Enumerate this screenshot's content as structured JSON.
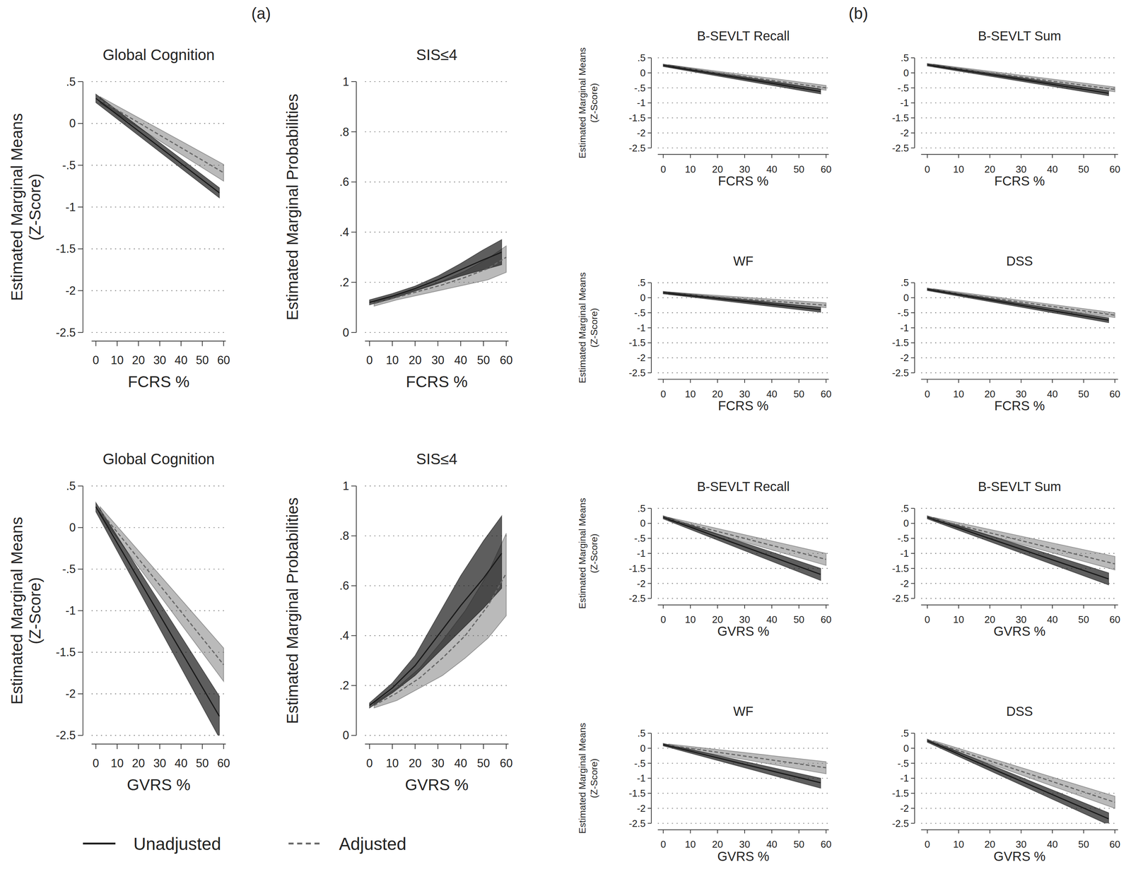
{
  "panel_labels": [
    "(a)",
    "(b)"
  ],
  "chart_data": [
    {
      "type": "line",
      "title": "Global Cognition",
      "x_label": "FCRS %",
      "y_label": "Estimated Marginal Means\n(Z-Score)",
      "xlim": [
        -2,
        61
      ],
      "ylim": [
        -2.5,
        0.5
      ],
      "xticks": [
        0,
        10,
        20,
        30,
        40,
        50,
        60
      ],
      "yticks": [
        {
          "value": 0.5,
          "label": ".5"
        },
        0,
        {
          "value": -0.5,
          "label": "-.5"
        },
        -1,
        -1.5,
        -2,
        -2.5
      ],
      "grid": true,
      "series": [
        {
          "name": "Unadjusted",
          "color": "#1a1a1a",
          "line_style": "solid",
          "x": [
            0,
            58
          ],
          "values": [
            0.3,
            -0.83
          ],
          "lower": [
            0.25,
            -0.89
          ],
          "upper": [
            0.35,
            -0.77
          ]
        },
        {
          "name": "Adjusted",
          "color": "#666666",
          "line_style": "dashed",
          "x": [
            2,
            60
          ],
          "values": [
            0.28,
            -0.59
          ],
          "lower": [
            0.24,
            -0.69
          ],
          "upper": [
            0.32,
            -0.49
          ]
        }
      ]
    },
    {
      "type": "line",
      "title": "SIS≤4",
      "x_label": "FCRS %",
      "y_label": "Estimated Marginal Probabilities",
      "xlim": [
        -2,
        61
      ],
      "ylim": [
        0,
        1
      ],
      "xticks": [
        0,
        10,
        20,
        30,
        40,
        50,
        60
      ],
      "yticks": [
        0,
        {
          "value": 0.2,
          "label": ".2"
        },
        {
          "value": 0.4,
          "label": ".4"
        },
        {
          "value": 0.6,
          "label": ".6"
        },
        {
          "value": 0.8,
          "label": ".8"
        },
        1
      ],
      "grid": true,
      "series": [
        {
          "color": "#1a1a1a",
          "line_style": "solid",
          "x": [
            0,
            10,
            20,
            30,
            40,
            50,
            58
          ],
          "values": [
            0.12,
            0.145,
            0.175,
            0.21,
            0.25,
            0.29,
            0.32
          ],
          "lower": [
            0.11,
            0.135,
            0.165,
            0.195,
            0.225,
            0.25,
            0.27
          ],
          "upper": [
            0.13,
            0.155,
            0.185,
            0.225,
            0.275,
            0.33,
            0.37
          ]
        },
        {
          "color": "#666666",
          "line_style": "dashed",
          "x": [
            2,
            12,
            22,
            32,
            42,
            52,
            60
          ],
          "values": [
            0.115,
            0.14,
            0.165,
            0.19,
            0.22,
            0.255,
            0.3
          ],
          "lower": [
            0.105,
            0.13,
            0.15,
            0.17,
            0.19,
            0.21,
            0.24
          ],
          "upper": [
            0.125,
            0.15,
            0.175,
            0.205,
            0.245,
            0.295,
            0.345
          ]
        }
      ]
    },
    {
      "type": "line",
      "title": "Global Cognition",
      "x_label": "GVRS %",
      "y_label": "Estimated Marginal Means\n(Z-Score)",
      "xlim": [
        -2,
        61
      ],
      "ylim": [
        -2.5,
        0.5
      ],
      "xticks": [
        0,
        10,
        20,
        30,
        40,
        50,
        60
      ],
      "yticks": [
        {
          "value": 0.5,
          "label": ".5"
        },
        0,
        {
          "value": -0.5,
          "label": "-.5"
        },
        -1,
        -1.5,
        -2,
        -2.5
      ],
      "grid": true,
      "series": [
        {
          "color": "#1a1a1a",
          "line_style": "solid",
          "x": [
            0,
            58
          ],
          "values": [
            0.25,
            -2.27
          ],
          "lower": [
            0.19,
            -2.53
          ],
          "upper": [
            0.3,
            -2.03
          ]
        },
        {
          "color": "#666666",
          "line_style": "dashed",
          "x": [
            2,
            60
          ],
          "values": [
            0.2,
            -1.65
          ],
          "lower": [
            0.15,
            -1.85
          ],
          "upper": [
            0.25,
            -1.45
          ]
        }
      ]
    },
    {
      "type": "line",
      "title": "SIS≤4",
      "x_label": "GVRS %",
      "y_label": "Estimated Marginal Probabilities",
      "xlim": [
        -2,
        61
      ],
      "ylim": [
        0,
        1
      ],
      "xticks": [
        0,
        10,
        20,
        30,
        40,
        50,
        60
      ],
      "yticks": [
        0,
        {
          "value": 0.2,
          "label": ".2"
        },
        {
          "value": 0.4,
          "label": ".4"
        },
        {
          "value": 0.6,
          "label": ".6"
        },
        {
          "value": 0.8,
          "label": ".8"
        },
        1
      ],
      "grid": true,
      "series": [
        {
          "color": "#1a1a1a",
          "line_style": "solid",
          "x": [
            0,
            10,
            20,
            30,
            40,
            50,
            58
          ],
          "values": [
            0.12,
            0.19,
            0.28,
            0.4,
            0.52,
            0.63,
            0.73
          ],
          "lower": [
            0.11,
            0.17,
            0.24,
            0.33,
            0.42,
            0.51,
            0.59
          ],
          "upper": [
            0.13,
            0.21,
            0.32,
            0.48,
            0.64,
            0.78,
            0.88
          ]
        },
        {
          "color": "#666666",
          "line_style": "dashed",
          "x": [
            2,
            12,
            22,
            32,
            42,
            52,
            60
          ],
          "values": [
            0.12,
            0.17,
            0.23,
            0.31,
            0.4,
            0.52,
            0.65
          ],
          "lower": [
            0.11,
            0.14,
            0.19,
            0.24,
            0.31,
            0.39,
            0.48
          ],
          "upper": [
            0.13,
            0.19,
            0.27,
            0.38,
            0.5,
            0.65,
            0.81
          ]
        }
      ]
    },
    {
      "type": "line",
      "title": "B-SEVLT Recall",
      "x_label": "FCRS %",
      "y_label": "Estimated Marginal Means\n(Z-Score)",
      "xlim": [
        -2,
        61
      ],
      "ylim": [
        -2.5,
        0.5
      ],
      "xticks": [
        0,
        10,
        20,
        30,
        40,
        50,
        60
      ],
      "yticks": [
        {
          "value": 0.5,
          "label": ".5"
        },
        0,
        {
          "value": -0.5,
          "label": "-.5"
        },
        -1,
        -1.5,
        -2,
        -2.5
      ],
      "grid": true,
      "series": [
        {
          "color": "#1a1a1a",
          "line_style": "solid",
          "x": [
            0,
            58
          ],
          "values": [
            0.25,
            -0.62
          ],
          "lower": [
            0.21,
            -0.7
          ],
          "upper": [
            0.29,
            -0.54
          ]
        },
        {
          "color": "#666666",
          "line_style": "dashed",
          "x": [
            2,
            60
          ],
          "values": [
            0.23,
            -0.5
          ],
          "lower": [
            0.19,
            -0.58
          ],
          "upper": [
            0.27,
            -0.42
          ]
        }
      ]
    },
    {
      "type": "line",
      "title": "B-SEVLT Sum",
      "x_label": "FCRS %",
      "xlim": [
        -2,
        61
      ],
      "ylim": [
        -2.5,
        0.5
      ],
      "xticks": [
        0,
        10,
        20,
        30,
        40,
        50,
        60
      ],
      "yticks": [
        {
          "value": 0.5,
          "label": ".5"
        },
        0,
        {
          "value": -0.5,
          "label": "-.5"
        },
        -1,
        -1.5,
        -2,
        -2.5
      ],
      "grid": true,
      "series": [
        {
          "color": "#1a1a1a",
          "line_style": "solid",
          "x": [
            0,
            58
          ],
          "values": [
            0.27,
            -0.68
          ],
          "lower": [
            0.23,
            -0.76
          ],
          "upper": [
            0.31,
            -0.6
          ]
        },
        {
          "color": "#666666",
          "line_style": "dashed",
          "x": [
            2,
            60
          ],
          "values": [
            0.25,
            -0.55
          ],
          "lower": [
            0.21,
            -0.63
          ],
          "upper": [
            0.29,
            -0.47
          ]
        }
      ]
    },
    {
      "type": "line",
      "title": "WF",
      "x_label": "FCRS %",
      "y_label": "Estimated Marginal Means\n(Z-Score)",
      "xlim": [
        -2,
        61
      ],
      "ylim": [
        -2.5,
        0.5
      ],
      "xticks": [
        0,
        10,
        20,
        30,
        40,
        50,
        60
      ],
      "yticks": [
        {
          "value": 0.5,
          "label": ".5"
        },
        0,
        {
          "value": -0.5,
          "label": "-.5"
        },
        -1,
        -1.5,
        -2,
        -2.5
      ],
      "grid": true,
      "series": [
        {
          "color": "#1a1a1a",
          "line_style": "solid",
          "x": [
            0,
            58
          ],
          "values": [
            0.17,
            -0.4
          ],
          "lower": [
            0.13,
            -0.48
          ],
          "upper": [
            0.21,
            -0.32
          ]
        },
        {
          "color": "#666666",
          "line_style": "dashed",
          "x": [
            2,
            60
          ],
          "values": [
            0.15,
            -0.25
          ],
          "lower": [
            0.11,
            -0.33
          ],
          "upper": [
            0.19,
            -0.17
          ]
        }
      ]
    },
    {
      "type": "line",
      "title": "DSS",
      "x_label": "FCRS %",
      "xlim": [
        -2,
        61
      ],
      "ylim": [
        -2.5,
        0.5
      ],
      "xticks": [
        0,
        10,
        20,
        30,
        40,
        50,
        60
      ],
      "yticks": [
        {
          "value": 0.5,
          "label": ".5"
        },
        0,
        {
          "value": -0.5,
          "label": "-.5"
        },
        -1,
        -1.5,
        -2,
        -2.5
      ],
      "grid": true,
      "series": [
        {
          "color": "#1a1a1a",
          "line_style": "solid",
          "x": [
            0,
            58
          ],
          "values": [
            0.28,
            -0.75
          ],
          "lower": [
            0.24,
            -0.83
          ],
          "upper": [
            0.32,
            -0.67
          ]
        },
        {
          "color": "#666666",
          "line_style": "dashed",
          "x": [
            2,
            60
          ],
          "values": [
            0.26,
            -0.58
          ],
          "lower": [
            0.22,
            -0.66
          ],
          "upper": [
            0.3,
            -0.5
          ]
        }
      ]
    },
    {
      "type": "line",
      "title": "B-SEVLT Recall",
      "x_label": "GVRS %",
      "y_label": "Estimated Marginal Means\n(Z-Score)",
      "xlim": [
        -2,
        61
      ],
      "ylim": [
        -2.5,
        0.5
      ],
      "xticks": [
        0,
        10,
        20,
        30,
        40,
        50,
        60
      ],
      "yticks": [
        {
          "value": 0.5,
          "label": ".5"
        },
        0,
        {
          "value": -0.5,
          "label": "-.5"
        },
        -1,
        -1.5,
        -2,
        -2.5
      ],
      "grid": true,
      "series": [
        {
          "color": "#1a1a1a",
          "line_style": "solid",
          "x": [
            0,
            58
          ],
          "values": [
            0.2,
            -1.7
          ],
          "lower": [
            0.15,
            -1.9
          ],
          "upper": [
            0.25,
            -1.5
          ]
        },
        {
          "color": "#666666",
          "line_style": "dashed",
          "x": [
            2,
            60
          ],
          "values": [
            0.15,
            -1.2
          ],
          "lower": [
            0.1,
            -1.4
          ],
          "upper": [
            0.2,
            -1.0
          ]
        }
      ]
    },
    {
      "type": "line",
      "title": "B-SEVLT Sum",
      "x_label": "GVRS %",
      "xlim": [
        -2,
        61
      ],
      "ylim": [
        -2.5,
        0.5
      ],
      "xticks": [
        0,
        10,
        20,
        30,
        40,
        50,
        60
      ],
      "yticks": [
        {
          "value": 0.5,
          "label": ".5"
        },
        0,
        {
          "value": -0.5,
          "label": "-.5"
        },
        -1,
        -1.5,
        -2,
        -2.5
      ],
      "grid": true,
      "series": [
        {
          "color": "#1a1a1a",
          "line_style": "solid",
          "x": [
            0,
            58
          ],
          "values": [
            0.2,
            -1.85
          ],
          "lower": [
            0.15,
            -2.05
          ],
          "upper": [
            0.25,
            -1.65
          ]
        },
        {
          "color": "#666666",
          "line_style": "dashed",
          "x": [
            2,
            60
          ],
          "values": [
            0.15,
            -1.35
          ],
          "lower": [
            0.1,
            -1.55
          ],
          "upper": [
            0.2,
            -1.1
          ]
        }
      ]
    },
    {
      "type": "line",
      "title": "WF",
      "x_label": "GVRS %",
      "y_label": "Estimated Marginal Means\n(Z-Score)",
      "xlim": [
        -2,
        61
      ],
      "ylim": [
        -2.5,
        0.5
      ],
      "xticks": [
        0,
        10,
        20,
        30,
        40,
        50,
        60
      ],
      "yticks": [
        {
          "value": 0.5,
          "label": ".5"
        },
        0,
        {
          "value": -0.5,
          "label": "-.5"
        },
        -1,
        -1.5,
        -2,
        -2.5
      ],
      "grid": true,
      "series": [
        {
          "color": "#1a1a1a",
          "line_style": "solid",
          "x": [
            0,
            58
          ],
          "values": [
            0.12,
            -1.15
          ],
          "lower": [
            0.08,
            -1.33
          ],
          "upper": [
            0.16,
            -1.0
          ]
        },
        {
          "color": "#666666",
          "line_style": "dashed",
          "x": [
            2,
            60
          ],
          "values": [
            0.1,
            -0.65
          ],
          "lower": [
            0.06,
            -0.85
          ],
          "upper": [
            0.14,
            -0.45
          ]
        }
      ]
    },
    {
      "type": "line",
      "title": "DSS",
      "x_label": "GVRS %",
      "xlim": [
        -2,
        61
      ],
      "ylim": [
        -2.5,
        0.5
      ],
      "xticks": [
        0,
        10,
        20,
        30,
        40,
        50,
        60
      ],
      "yticks": [
        {
          "value": 0.5,
          "label": ".5"
        },
        0,
        {
          "value": -0.5,
          "label": "-.5"
        },
        -1,
        -1.5,
        -2,
        -2.5
      ],
      "grid": true,
      "series": [
        {
          "color": "#1a1a1a",
          "line_style": "solid",
          "x": [
            0,
            58
          ],
          "values": [
            0.25,
            -2.35
          ],
          "lower": [
            0.2,
            -2.55
          ],
          "upper": [
            0.3,
            -2.15
          ]
        },
        {
          "color": "#666666",
          "line_style": "dashed",
          "x": [
            2,
            60
          ],
          "values": [
            0.2,
            -1.8
          ],
          "lower": [
            0.15,
            -2.0
          ],
          "upper": [
            0.25,
            -1.6
          ]
        }
      ]
    }
  ]
}
